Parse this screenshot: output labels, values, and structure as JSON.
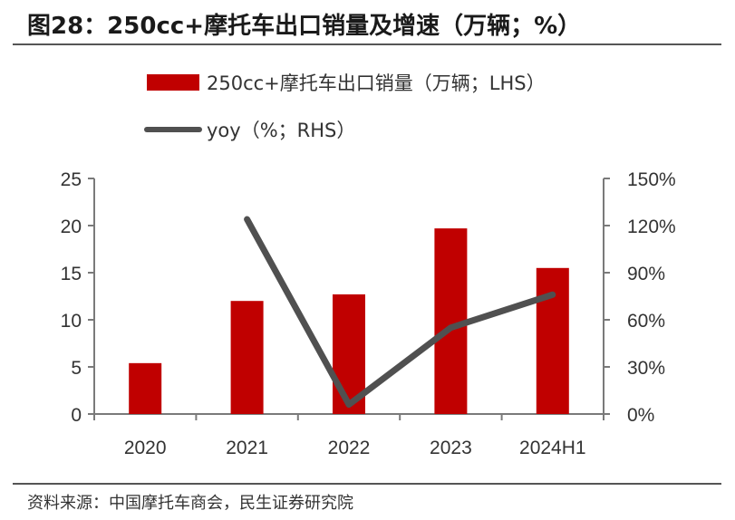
{
  "title": "图28：250cc+摩托车出口销量及增速（万辆；%）",
  "source": "资料来源：中国摩托车商会，民生证券研究院",
  "chart_data": {
    "type": "bar+line",
    "categories": [
      "2020",
      "2021",
      "2022",
      "2023",
      "2024H1"
    ],
    "series": [
      {
        "name": "250cc+摩托车出口销量（万辆；LHS）",
        "type": "bar",
        "axis": "left",
        "color": "#C00000",
        "values": [
          5.4,
          12.0,
          12.7,
          19.7,
          15.5
        ]
      },
      {
        "name": "yoy（%；RHS）",
        "type": "line",
        "axis": "right",
        "color": "#505050",
        "values": [
          null,
          124,
          6,
          55,
          76
        ]
      }
    ],
    "left_axis": {
      "min": 0,
      "max": 25,
      "ticks": [
        "0",
        "5",
        "10",
        "15",
        "20",
        "25"
      ]
    },
    "right_axis": {
      "min": 0,
      "max": 150,
      "ticks": [
        "0%",
        "30%",
        "60%",
        "90%",
        "120%",
        "150%"
      ]
    },
    "legend_position": "top"
  }
}
